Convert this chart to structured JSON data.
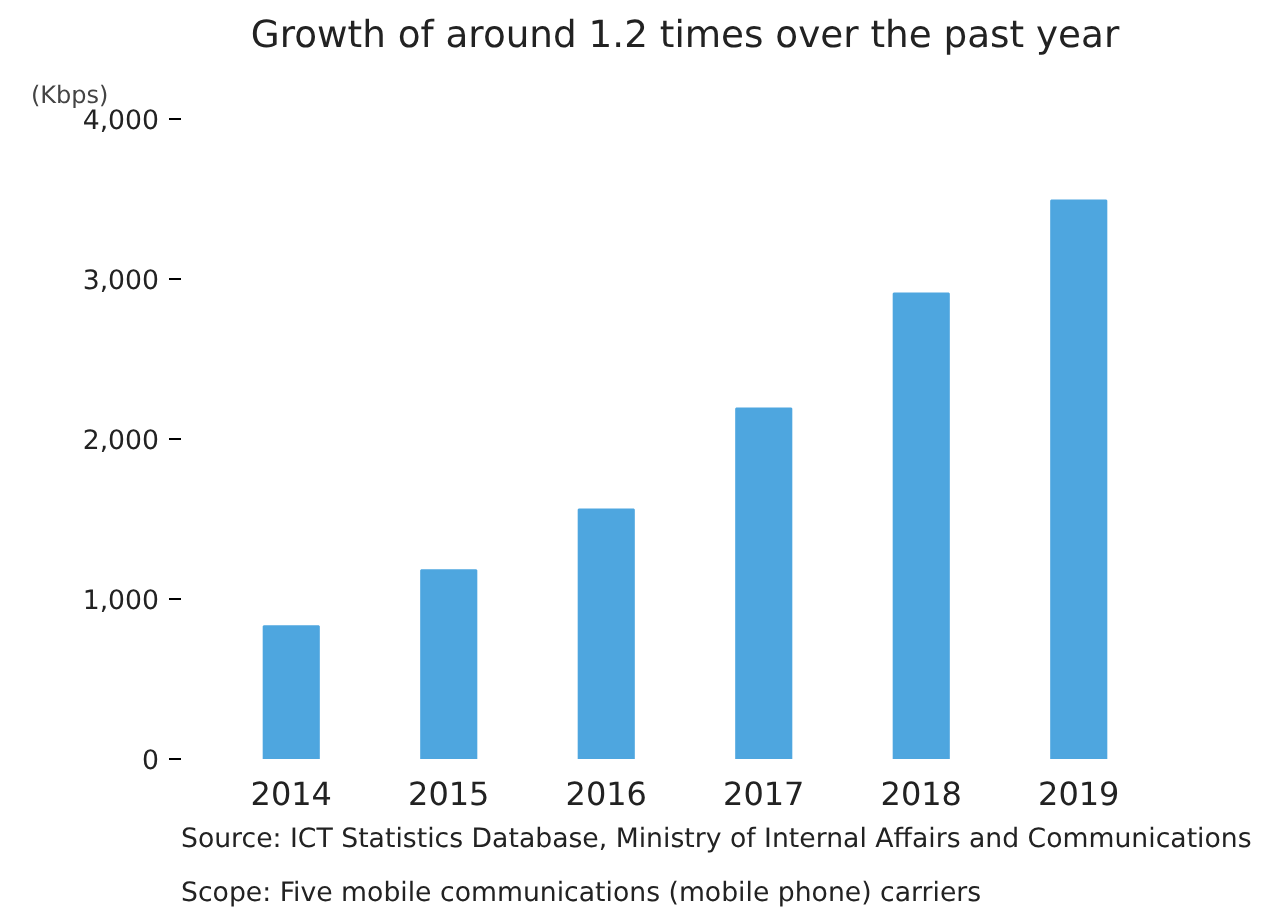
{
  "chart_data": {
    "type": "bar",
    "title": "Growth of around 1.2 times over the past year",
    "ylabel": "(Kbps)",
    "categories": [
      "2014",
      "2015",
      "2016",
      "2017",
      "2018",
      "2019"
    ],
    "values": [
      830,
      1180,
      1560,
      2190,
      2910,
      3490
    ],
    "color": "#4ea6df",
    "ylim": [
      0,
      4000
    ],
    "yticks": [
      {
        "value": 0,
        "label": "0"
      },
      {
        "value": 1000,
        "label": "1,000"
      },
      {
        "value": 2000,
        "label": "2,000"
      },
      {
        "value": 3000,
        "label": "3,000"
      },
      {
        "value": 4000,
        "label": "4,000"
      }
    ],
    "grid": false,
    "annotations": [
      "Source: ICT Statistics Database, Ministry of Internal Affairs and Communications",
      "Scope: Five mobile communications (mobile phone) carriers"
    ]
  }
}
